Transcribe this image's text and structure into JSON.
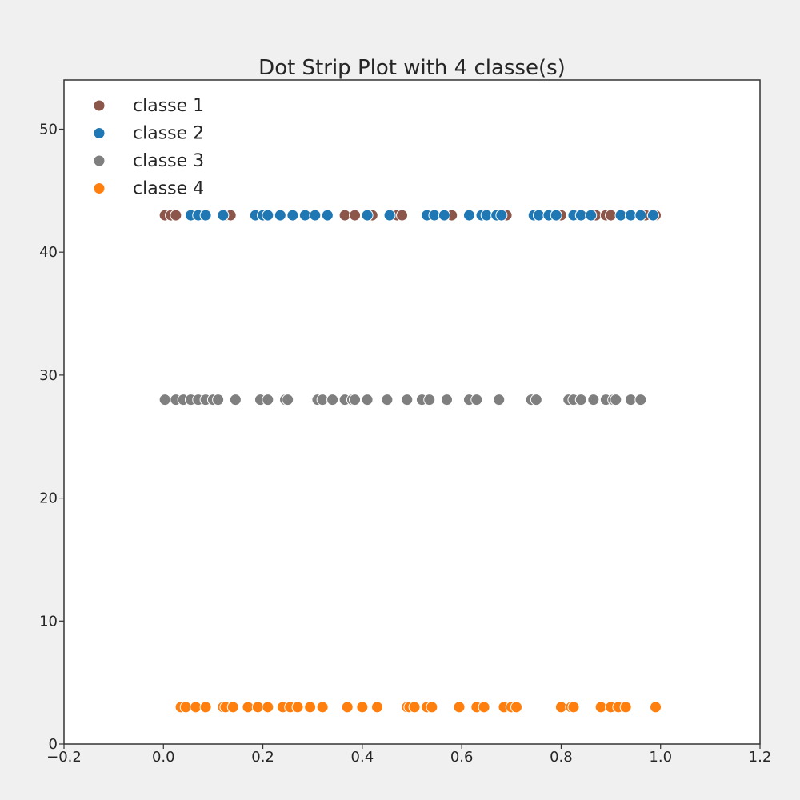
{
  "chart_data": {
    "type": "scatter",
    "title": "Dot Strip Plot with 4 classe(s)",
    "xlabel": "",
    "ylabel": "",
    "xlim": [
      -0.2,
      1.2
    ],
    "ylim": [
      0,
      54
    ],
    "xticks": [
      -0.2,
      0.0,
      0.2,
      0.4,
      0.6,
      0.8,
      1.0,
      1.2
    ],
    "yticks": [
      0,
      10,
      20,
      30,
      40,
      50
    ],
    "xtick_labels": [
      "−0.2",
      "0.0",
      "0.2",
      "0.4",
      "0.6",
      "0.8",
      "1.0",
      "1.2"
    ],
    "ytick_labels": [
      "0",
      "10",
      "20",
      "30",
      "40",
      "50"
    ],
    "grid": false,
    "legend_position": "top-left",
    "series": [
      {
        "name": "classe 1",
        "color": "#8c564b",
        "y": 43,
        "x": [
          0.003,
          0.015,
          0.025,
          0.13,
          0.135,
          0.365,
          0.385,
          0.42,
          0.47,
          0.48,
          0.58,
          0.69,
          0.8,
          0.87,
          0.89,
          0.9,
          0.97,
          0.99
        ]
      },
      {
        "name": "classe 2",
        "color": "#1f77b4",
        "y": 43,
        "x": [
          0.055,
          0.07,
          0.085,
          0.12,
          0.185,
          0.2,
          0.21,
          0.235,
          0.26,
          0.285,
          0.305,
          0.33,
          0.41,
          0.455,
          0.53,
          0.545,
          0.565,
          0.615,
          0.64,
          0.65,
          0.67,
          0.68,
          0.745,
          0.755,
          0.775,
          0.79,
          0.825,
          0.84,
          0.86,
          0.92,
          0.94,
          0.96,
          0.985
        ]
      },
      {
        "name": "classe 3",
        "color": "#7f7f7f",
        "y": 28,
        "x": [
          0.003,
          0.025,
          0.04,
          0.055,
          0.07,
          0.085,
          0.1,
          0.11,
          0.145,
          0.195,
          0.21,
          0.245,
          0.25,
          0.31,
          0.32,
          0.34,
          0.365,
          0.38,
          0.385,
          0.41,
          0.45,
          0.49,
          0.52,
          0.535,
          0.57,
          0.615,
          0.63,
          0.675,
          0.74,
          0.75,
          0.815,
          0.825,
          0.84,
          0.865,
          0.89,
          0.905,
          0.91,
          0.94,
          0.96
        ]
      },
      {
        "name": "classe 4",
        "color": "#ff7f0e",
        "y": 3,
        "x": [
          0.035,
          0.045,
          0.065,
          0.085,
          0.12,
          0.125,
          0.14,
          0.17,
          0.19,
          0.21,
          0.24,
          0.255,
          0.27,
          0.295,
          0.32,
          0.37,
          0.4,
          0.43,
          0.49,
          0.495,
          0.505,
          0.53,
          0.54,
          0.595,
          0.63,
          0.645,
          0.685,
          0.7,
          0.71,
          0.8,
          0.82,
          0.825,
          0.88,
          0.9,
          0.915,
          0.93,
          0.99
        ]
      }
    ]
  }
}
